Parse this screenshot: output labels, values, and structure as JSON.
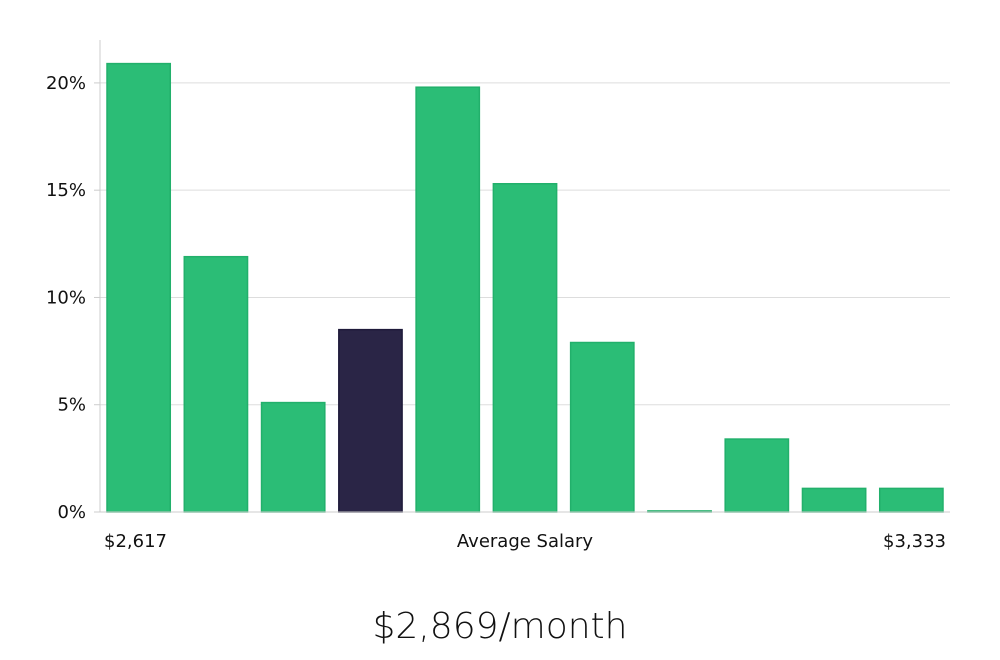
{
  "chart_data": {
    "type": "bar",
    "values": [
      20.9,
      11.9,
      5.1,
      8.5,
      19.8,
      15.3,
      7.9,
      0.05,
      3.4,
      1.1,
      1.1
    ],
    "highlight_index": 3,
    "colors": {
      "bar": "#2bbd76",
      "highlight": "#2a2546",
      "grid": "#dddddd",
      "axis": "#cccccc"
    },
    "ylim": [
      0,
      22
    ],
    "yticks": [
      0,
      5,
      10,
      15,
      20
    ],
    "ytick_labels": [
      "0%",
      "5%",
      "10%",
      "15%",
      "20%"
    ],
    "x_min_label": "$2,617",
    "x_max_label": "$3,333",
    "xlabel": "Average Salary",
    "grid": true
  },
  "summary": {
    "text": "$2,869/month"
  }
}
